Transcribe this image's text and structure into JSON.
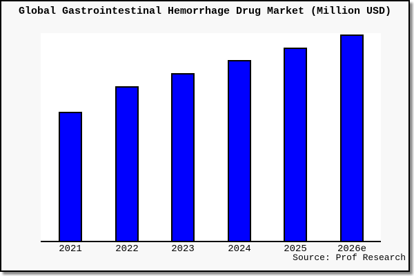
{
  "header": {
    "title": "Global Gastrointestinal Hemorrhage Drug Market (Million USD)"
  },
  "source": {
    "label": "Source: Prof Research"
  },
  "colors": {
    "bar_fill": "#0000ff",
    "bar_border": "#000000",
    "card_bg": "#f8f8f8",
    "plot_bg": "#ffffff",
    "axis": "#000000",
    "shadow": "#8a8a8a"
  },
  "chart_data": {
    "type": "bar",
    "title": "Global Gastrointestinal Hemorrhage Drug Market (Million USD)",
    "categories": [
      "2021",
      "2022",
      "2023",
      "2024",
      "2025",
      "2026e"
    ],
    "values": [
      100,
      120,
      130,
      140,
      150,
      160
    ],
    "xlabel": "",
    "ylabel": "",
    "ylim": [
      0,
      161
    ],
    "grid": false,
    "legend": false
  }
}
